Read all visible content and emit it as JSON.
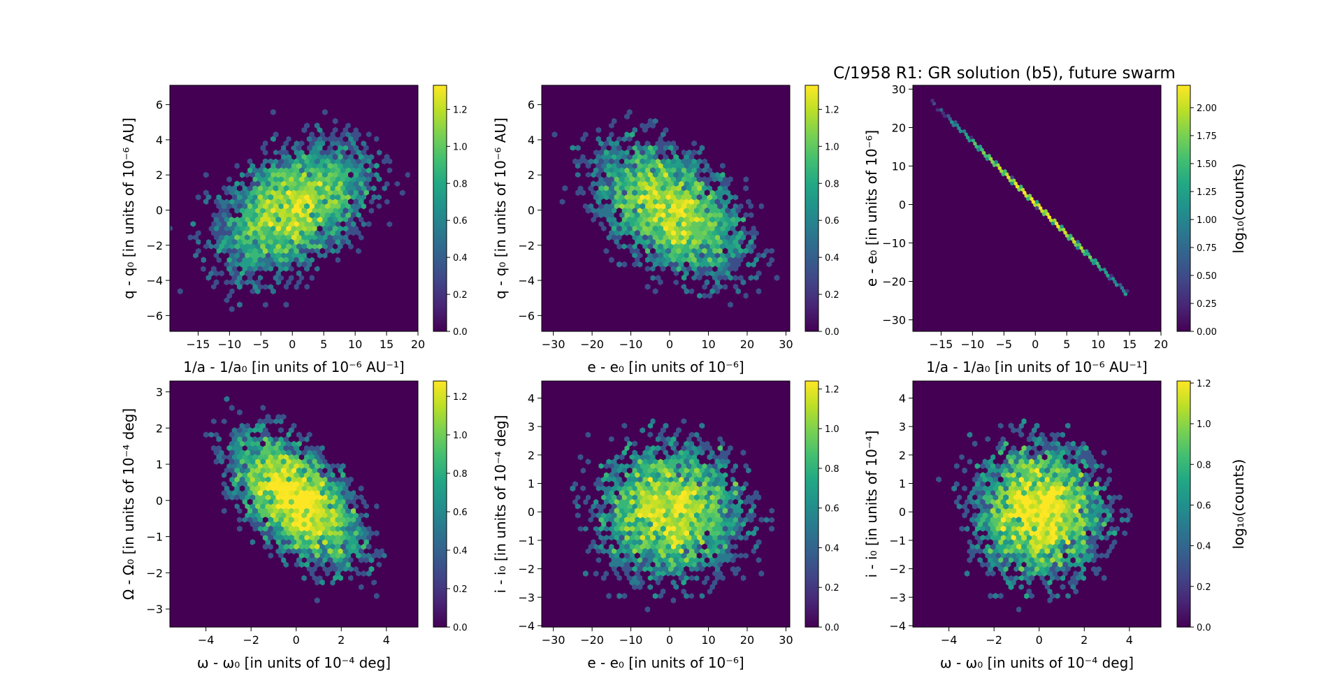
{
  "figure": {
    "title": "C/1958 R1: GR solution (b5), future swarm"
  },
  "colors": {
    "viridis": [
      "#440154",
      "#482475",
      "#414487",
      "#355f8d",
      "#2a788e",
      "#21918c",
      "#22a884",
      "#44bf70",
      "#7ad151",
      "#bddf26",
      "#fde725"
    ],
    "background": "#440154"
  },
  "chart_data": [
    {
      "type": "heatmap",
      "subtype": "hexbin",
      "xlabel": "1/a - 1/a₀ [in units of 10⁻⁶ AU⁻¹]",
      "ylabel": "q - q₀ [in units of 10⁻⁶ AU]",
      "xlim": [
        -19.5,
        20
      ],
      "ylim": [
        -6.9,
        7.1
      ],
      "xticks": [
        -15,
        -10,
        -5,
        0,
        5,
        10,
        15,
        20
      ],
      "yticks": [
        -6,
        -4,
        -2,
        0,
        2,
        4,
        6
      ],
      "cbar_ticks": [
        "0.0",
        "0.2",
        "0.4",
        "0.6",
        "0.8",
        "1.0",
        "1.2"
      ],
      "cbar_max": 1.33,
      "cbar_label": "",
      "distribution": {
        "kind": "gaussian",
        "sx": 6.5,
        "sy": 2.0,
        "rho": 0.45,
        "n": 5000
      }
    },
    {
      "type": "heatmap",
      "subtype": "hexbin",
      "xlabel": "e - e₀ [in units of 10⁻⁶]",
      "ylabel": "q - q₀ [in units of 10⁻⁶ AU]",
      "xlim": [
        -33,
        31
      ],
      "ylim": [
        -6.9,
        7.1
      ],
      "xticks": [
        -30,
        -20,
        -10,
        0,
        10,
        20,
        30
      ],
      "yticks": [
        -6,
        -4,
        -2,
        0,
        2,
        4,
        6
      ],
      "cbar_ticks": [
        "0.0",
        "0.2",
        "0.4",
        "0.6",
        "0.8",
        "1.0",
        "1.2"
      ],
      "cbar_max": 1.33,
      "cbar_label": "",
      "distribution": {
        "kind": "gaussian",
        "sx": 10.0,
        "sy": 2.0,
        "rho": -0.45,
        "n": 5000
      }
    },
    {
      "type": "heatmap",
      "subtype": "hexbin",
      "xlabel": "1/a - 1/a₀ [in units of 10⁻⁶ AU⁻¹]",
      "ylabel": "e - e₀ [in units of 10⁻⁶]",
      "xlim": [
        -19.5,
        20
      ],
      "ylim": [
        -33,
        31
      ],
      "xticks": [
        -15,
        -10,
        -5,
        0,
        5,
        10,
        15,
        20
      ],
      "yticks": [
        -30,
        -20,
        -10,
        0,
        10,
        20,
        30
      ],
      "cbar_ticks": [
        "0.00",
        "0.25",
        "0.50",
        "0.75",
        "1.00",
        "1.25",
        "1.50",
        "1.75",
        "2.00"
      ],
      "cbar_max": 2.2,
      "cbar_label": "log₁₀(counts)",
      "distribution": {
        "kind": "line",
        "x_start": -18.5,
        "y_start": 30,
        "x_end": 14.5,
        "y_end": -23,
        "sx": 5.5
      }
    },
    {
      "type": "heatmap",
      "subtype": "hexbin",
      "xlabel": "ω - ω₀ [in units of 10⁻⁴ deg]",
      "ylabel": "Ω - Ω₀ [in units of 10⁻⁴ deg]",
      "xlim": [
        -5.6,
        5.4
      ],
      "ylim": [
        -3.5,
        3.3
      ],
      "xticks": [
        -4,
        -2,
        0,
        2,
        4
      ],
      "yticks": [
        -3,
        -2,
        -1,
        0,
        1,
        2,
        3
      ],
      "cbar_ticks": [
        "0.0",
        "0.2",
        "0.4",
        "0.6",
        "0.8",
        "1.0",
        "1.2"
      ],
      "cbar_max": 1.28,
      "cbar_label": "",
      "distribution": {
        "kind": "gaussian",
        "sx": 1.5,
        "sy": 0.95,
        "rho": -0.55,
        "n": 5000
      }
    },
    {
      "type": "heatmap",
      "subtype": "hexbin",
      "xlabel": "e - e₀ [in units of 10⁻⁶]",
      "ylabel": "i - i₀ [in units of 10⁻⁴ deg]",
      "xlim": [
        -33,
        31
      ],
      "ylim": [
        -4.05,
        4.6
      ],
      "xticks": [
        -30,
        -20,
        -10,
        0,
        10,
        20,
        30
      ],
      "yticks": [
        -4,
        -3,
        -2,
        0,
        1,
        2,
        3,
        4
      ],
      "yticks_all": [
        -4,
        -3,
        -2,
        -1,
        0,
        1,
        2,
        3,
        4
      ],
      "cbar_ticks": [
        "0.0",
        "0.2",
        "0.4",
        "0.6",
        "0.8",
        "1.0",
        "1.2"
      ],
      "cbar_max": 1.24,
      "cbar_label": "",
      "distribution": {
        "kind": "gaussian",
        "sx": 10.0,
        "sy": 1.25,
        "rho": 0.0,
        "n": 5000
      }
    },
    {
      "type": "heatmap",
      "subtype": "hexbin",
      "xlabel": "ω - ω₀ [in units of 10⁻⁴ deg]",
      "ylabel": "i - i₀ [in units of 10⁻⁴]",
      "xlim": [
        -5.6,
        5.4
      ],
      "ylim": [
        -4.05,
        4.6
      ],
      "xticks": [
        -4,
        -2,
        0,
        2,
        4
      ],
      "yticks_all": [
        -4,
        -3,
        -2,
        -1,
        0,
        1,
        2,
        3,
        4
      ],
      "cbar_ticks": [
        "0.0",
        "0.2",
        "0.4",
        "0.6",
        "0.8",
        "1.0",
        "1.2"
      ],
      "cbar_max": 1.21,
      "cbar_label": "log₁₀(counts)",
      "distribution": {
        "kind": "gaussian",
        "sx": 1.5,
        "sy": 1.25,
        "rho": 0.0,
        "n": 5000
      }
    }
  ]
}
